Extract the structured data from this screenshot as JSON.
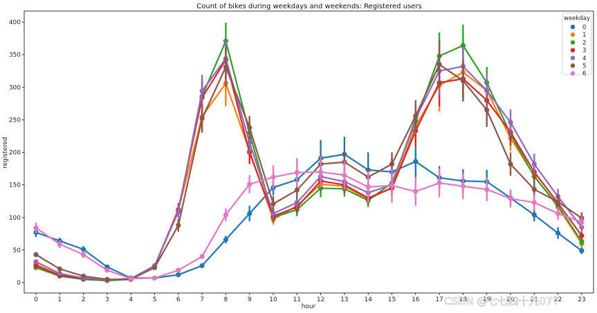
{
  "chart_data": {
    "type": "line",
    "title": "Count of bikes during weekdays and weekends: Registered users",
    "xlabel": "hour",
    "ylabel": "registered",
    "x": [
      "0",
      "1",
      "2",
      "3",
      "4",
      "5",
      "6",
      "7",
      "8",
      "9",
      "10",
      "11",
      "12",
      "13",
      "14",
      "15",
      "16",
      "17",
      "18",
      "19",
      "20",
      "21",
      "22",
      "23"
    ],
    "yticks": [
      0,
      50,
      100,
      150,
      200,
      250,
      300,
      350,
      400
    ],
    "ylim": [
      -15,
      410
    ],
    "grid": false,
    "legend": {
      "title": "weekday",
      "placement": "top-right"
    },
    "series": [
      {
        "name": "0",
        "color": "#1f77b4",
        "values": [
          77,
          64,
          51,
          24,
          7,
          7,
          12,
          26,
          66,
          106,
          146,
          158,
          191,
          197,
          173,
          170,
          186,
          161,
          156,
          155,
          130,
          104,
          76,
          49
        ],
        "errors": [
          7,
          5,
          5,
          3,
          2,
          2,
          2,
          3,
          6,
          12,
          12,
          15,
          28,
          27,
          27,
          22,
          27,
          18,
          18,
          18,
          12,
          10,
          9,
          5
        ]
      },
      {
        "name": "1",
        "color": "#ff7f0e",
        "values": [
          28,
          12,
          6,
          4,
          6,
          24,
          111,
          255,
          306,
          202,
          97,
          118,
          151,
          148,
          128,
          146,
          240,
          303,
          323,
          295,
          222,
          164,
          116,
          60
        ],
        "errors": [
          3,
          2,
          1,
          1,
          1,
          3,
          10,
          22,
          35,
          18,
          8,
          10,
          12,
          12,
          10,
          12,
          24,
          40,
          40,
          28,
          20,
          14,
          10,
          6
        ]
      },
      {
        "name": "2",
        "color": "#2ca02c",
        "values": [
          23,
          10,
          5,
          3,
          5,
          25,
          110,
          286,
          371,
          230,
          100,
          112,
          145,
          144,
          126,
          153,
          248,
          348,
          364,
          307,
          228,
          163,
          118,
          63
        ],
        "errors": [
          3,
          2,
          1,
          1,
          1,
          3,
          10,
          25,
          28,
          18,
          8,
          10,
          14,
          12,
          10,
          12,
          24,
          36,
          32,
          24,
          18,
          14,
          10,
          6
        ]
      },
      {
        "name": "3",
        "color": "#d62728",
        "values": [
          26,
          11,
          6,
          4,
          6,
          25,
          112,
          284,
          342,
          200,
          102,
          116,
          156,
          150,
          130,
          145,
          233,
          307,
          313,
          280,
          231,
          170,
          122,
          72
        ],
        "errors": [
          3,
          2,
          1,
          1,
          1,
          3,
          10,
          25,
          30,
          18,
          8,
          10,
          12,
          12,
          10,
          12,
          24,
          36,
          30,
          26,
          20,
          14,
          10,
          6
        ]
      },
      {
        "name": "4",
        "color": "#9467bd",
        "values": [
          32,
          14,
          7,
          4,
          6,
          26,
          109,
          294,
          344,
          215,
          106,
          123,
          163,
          155,
          138,
          150,
          252,
          325,
          332,
          295,
          246,
          182,
          132,
          85
        ],
        "errors": [
          3,
          2,
          1,
          1,
          1,
          3,
          10,
          25,
          30,
          18,
          8,
          10,
          12,
          12,
          10,
          12,
          24,
          36,
          30,
          26,
          20,
          16,
          12,
          7
        ]
      },
      {
        "name": "5",
        "color": "#8c564b",
        "values": [
          43,
          21,
          10,
          5,
          5,
          23,
          88,
          252,
          331,
          238,
          121,
          142,
          182,
          185,
          162,
          182,
          256,
          335,
          310,
          265,
          182,
          143,
          124,
          99
        ],
        "errors": [
          4,
          3,
          2,
          1,
          1,
          3,
          10,
          22,
          30,
          18,
          12,
          14,
          16,
          16,
          14,
          18,
          24,
          36,
          32,
          26,
          18,
          14,
          12,
          9
        ]
      },
      {
        "name": "6",
        "color": "#e377c2",
        "values": [
          84,
          59,
          43,
          19,
          6,
          7,
          19,
          40,
          104,
          151,
          162,
          169,
          170,
          165,
          147,
          149,
          140,
          153,
          148,
          143,
          129,
          123,
          106,
          93
        ],
        "errors": [
          8,
          6,
          5,
          3,
          2,
          2,
          2,
          4,
          10,
          14,
          18,
          22,
          24,
          22,
          24,
          26,
          22,
          22,
          20,
          18,
          14,
          12,
          10,
          8
        ]
      }
    ]
  },
  "watermark": "CSDN @七七四十九077"
}
